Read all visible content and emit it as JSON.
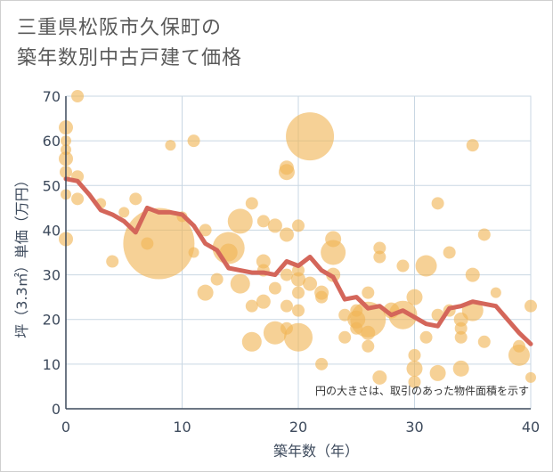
{
  "title_lines": [
    "三重県松阪市久保町の",
    "築年数別中古戸建て価格"
  ],
  "chart_data": {
    "type": "scatter",
    "title": "三重県松阪市久保町の築年数別中古戸建て価格",
    "xlabel": "築年数（年）",
    "ylabel": "坪（3.3㎡）単価（万円）",
    "xlim": [
      0,
      40
    ],
    "ylim": [
      0,
      70
    ],
    "xticks": [
      0,
      10,
      20,
      30,
      40
    ],
    "yticks": [
      0,
      10,
      20,
      30,
      40,
      50,
      60,
      70
    ],
    "grid": true,
    "note": "円の大きさは、取引のあった物件面積を示す",
    "colors": {
      "bubble": "#f0b455",
      "trend": "#d4665a",
      "grid": "#c9d7e3",
      "axis": "#3d4a5c"
    },
    "bubbles": [
      {
        "x": 0,
        "y": 63,
        "s": 8
      },
      {
        "x": 0,
        "y": 60,
        "s": 6
      },
      {
        "x": 0,
        "y": 58,
        "s": 6
      },
      {
        "x": 0,
        "y": 56,
        "s": 8
      },
      {
        "x": 0,
        "y": 53,
        "s": 7
      },
      {
        "x": 0,
        "y": 48,
        "s": 6
      },
      {
        "x": 0,
        "y": 38,
        "s": 8
      },
      {
        "x": 1,
        "y": 70,
        "s": 7
      },
      {
        "x": 1,
        "y": 52,
        "s": 7
      },
      {
        "x": 1,
        "y": 47,
        "s": 7
      },
      {
        "x": 3,
        "y": 46,
        "s": 6
      },
      {
        "x": 4,
        "y": 33,
        "s": 7
      },
      {
        "x": 5,
        "y": 44,
        "s": 6
      },
      {
        "x": 6,
        "y": 47,
        "s": 7
      },
      {
        "x": 7,
        "y": 37,
        "s": 7
      },
      {
        "x": 8,
        "y": 37,
        "s": 40
      },
      {
        "x": 9,
        "y": 59,
        "s": 6
      },
      {
        "x": 10,
        "y": 43,
        "s": 6
      },
      {
        "x": 11,
        "y": 60,
        "s": 7
      },
      {
        "x": 11,
        "y": 35,
        "s": 6
      },
      {
        "x": 12,
        "y": 40,
        "s": 7
      },
      {
        "x": 12,
        "y": 26,
        "s": 9
      },
      {
        "x": 13,
        "y": 29,
        "s": 7
      },
      {
        "x": 14,
        "y": 35,
        "s": 10
      },
      {
        "x": 14,
        "y": 36,
        "s": 18
      },
      {
        "x": 15,
        "y": 42,
        "s": 14
      },
      {
        "x": 15,
        "y": 28,
        "s": 11
      },
      {
        "x": 16,
        "y": 46,
        "s": 7
      },
      {
        "x": 16,
        "y": 23,
        "s": 7
      },
      {
        "x": 16,
        "y": 15,
        "s": 11
      },
      {
        "x": 17,
        "y": 42,
        "s": 7
      },
      {
        "x": 17,
        "y": 33,
        "s": 8
      },
      {
        "x": 17,
        "y": 31,
        "s": 7
      },
      {
        "x": 17,
        "y": 24,
        "s": 8
      },
      {
        "x": 18,
        "y": 41,
        "s": 8
      },
      {
        "x": 18,
        "y": 27,
        "s": 7
      },
      {
        "x": 18,
        "y": 17,
        "s": 13
      },
      {
        "x": 19,
        "y": 54,
        "s": 8
      },
      {
        "x": 19,
        "y": 53,
        "s": 9
      },
      {
        "x": 19,
        "y": 39,
        "s": 8
      },
      {
        "x": 19,
        "y": 30,
        "s": 7
      },
      {
        "x": 19,
        "y": 23,
        "s": 7
      },
      {
        "x": 19,
        "y": 18,
        "s": 7
      },
      {
        "x": 20,
        "y": 41,
        "s": 7
      },
      {
        "x": 20,
        "y": 31,
        "s": 7
      },
      {
        "x": 20,
        "y": 29,
        "s": 8
      },
      {
        "x": 20,
        "y": 26,
        "s": 7
      },
      {
        "x": 20,
        "y": 22,
        "s": 7
      },
      {
        "x": 20,
        "y": 16,
        "s": 16
      },
      {
        "x": 21,
        "y": 61,
        "s": 27
      },
      {
        "x": 21,
        "y": 28,
        "s": 8
      },
      {
        "x": 22,
        "y": 26,
        "s": 8
      },
      {
        "x": 22,
        "y": 25,
        "s": 7
      },
      {
        "x": 22,
        "y": 10,
        "s": 7
      },
      {
        "x": 23,
        "y": 38,
        "s": 9
      },
      {
        "x": 23,
        "y": 35,
        "s": 14
      },
      {
        "x": 23,
        "y": 30,
        "s": 8
      },
      {
        "x": 24,
        "y": 21,
        "s": 7
      },
      {
        "x": 24,
        "y": 16,
        "s": 7
      },
      {
        "x": 25,
        "y": 22,
        "s": 7
      },
      {
        "x": 25,
        "y": 20,
        "s": 10
      },
      {
        "x": 25,
        "y": 18,
        "s": 7
      },
      {
        "x": 26,
        "y": 26,
        "s": 7
      },
      {
        "x": 26,
        "y": 17,
        "s": 8
      },
      {
        "x": 26,
        "y": 14,
        "s": 7
      },
      {
        "x": 26,
        "y": 20,
        "s": 20
      },
      {
        "x": 27,
        "y": 36,
        "s": 7
      },
      {
        "x": 27,
        "y": 34,
        "s": 7
      },
      {
        "x": 27,
        "y": 7,
        "s": 8
      },
      {
        "x": 28,
        "y": 22,
        "s": 9
      },
      {
        "x": 29,
        "y": 32,
        "s": 7
      },
      {
        "x": 29,
        "y": 21,
        "s": 16
      },
      {
        "x": 30,
        "y": 25,
        "s": 9
      },
      {
        "x": 30,
        "y": 12,
        "s": 7
      },
      {
        "x": 30,
        "y": 9,
        "s": 9
      },
      {
        "x": 30,
        "y": 6,
        "s": 7
      },
      {
        "x": 31,
        "y": 32,
        "s": 12
      },
      {
        "x": 31,
        "y": 16,
        "s": 7
      },
      {
        "x": 32,
        "y": 46,
        "s": 7
      },
      {
        "x": 32,
        "y": 21,
        "s": 7
      },
      {
        "x": 32,
        "y": 8,
        "s": 9
      },
      {
        "x": 33,
        "y": 35,
        "s": 7
      },
      {
        "x": 33,
        "y": 22,
        "s": 7
      },
      {
        "x": 34,
        "y": 20,
        "s": 8
      },
      {
        "x": 34,
        "y": 18,
        "s": 7
      },
      {
        "x": 34,
        "y": 16,
        "s": 7
      },
      {
        "x": 34,
        "y": 9,
        "s": 9
      },
      {
        "x": 35,
        "y": 59,
        "s": 7
      },
      {
        "x": 35,
        "y": 30,
        "s": 8
      },
      {
        "x": 35,
        "y": 22,
        "s": 12
      },
      {
        "x": 36,
        "y": 39,
        "s": 7
      },
      {
        "x": 36,
        "y": 15,
        "s": 7
      },
      {
        "x": 37,
        "y": 26,
        "s": 6
      },
      {
        "x": 39,
        "y": 14,
        "s": 7
      },
      {
        "x": 39,
        "y": 12,
        "s": 12
      },
      {
        "x": 40,
        "y": 23,
        "s": 7
      },
      {
        "x": 40,
        "y": 7,
        "s": 6
      }
    ],
    "trend": {
      "x": [
        0,
        1,
        2,
        3,
        4,
        5,
        6,
        7,
        8,
        9,
        10,
        11,
        12,
        13,
        14,
        15,
        16,
        17,
        18,
        19,
        20,
        21,
        22,
        23,
        24,
        25,
        26,
        27,
        28,
        29,
        30,
        31,
        32,
        33,
        34,
        35,
        36,
        37,
        38,
        39,
        40
      ],
      "y": [
        51.5,
        51,
        48,
        44.5,
        43.5,
        42,
        39.5,
        45,
        44,
        44,
        43.5,
        41,
        37,
        35.5,
        31.5,
        31,
        30.5,
        30.5,
        30,
        33,
        32,
        34,
        31,
        29.5,
        24.5,
        25,
        22.5,
        23,
        21,
        22,
        20.5,
        19,
        18.5,
        22.5,
        23,
        24,
        23.5,
        23,
        20,
        17,
        14.5
      ]
    }
  }
}
